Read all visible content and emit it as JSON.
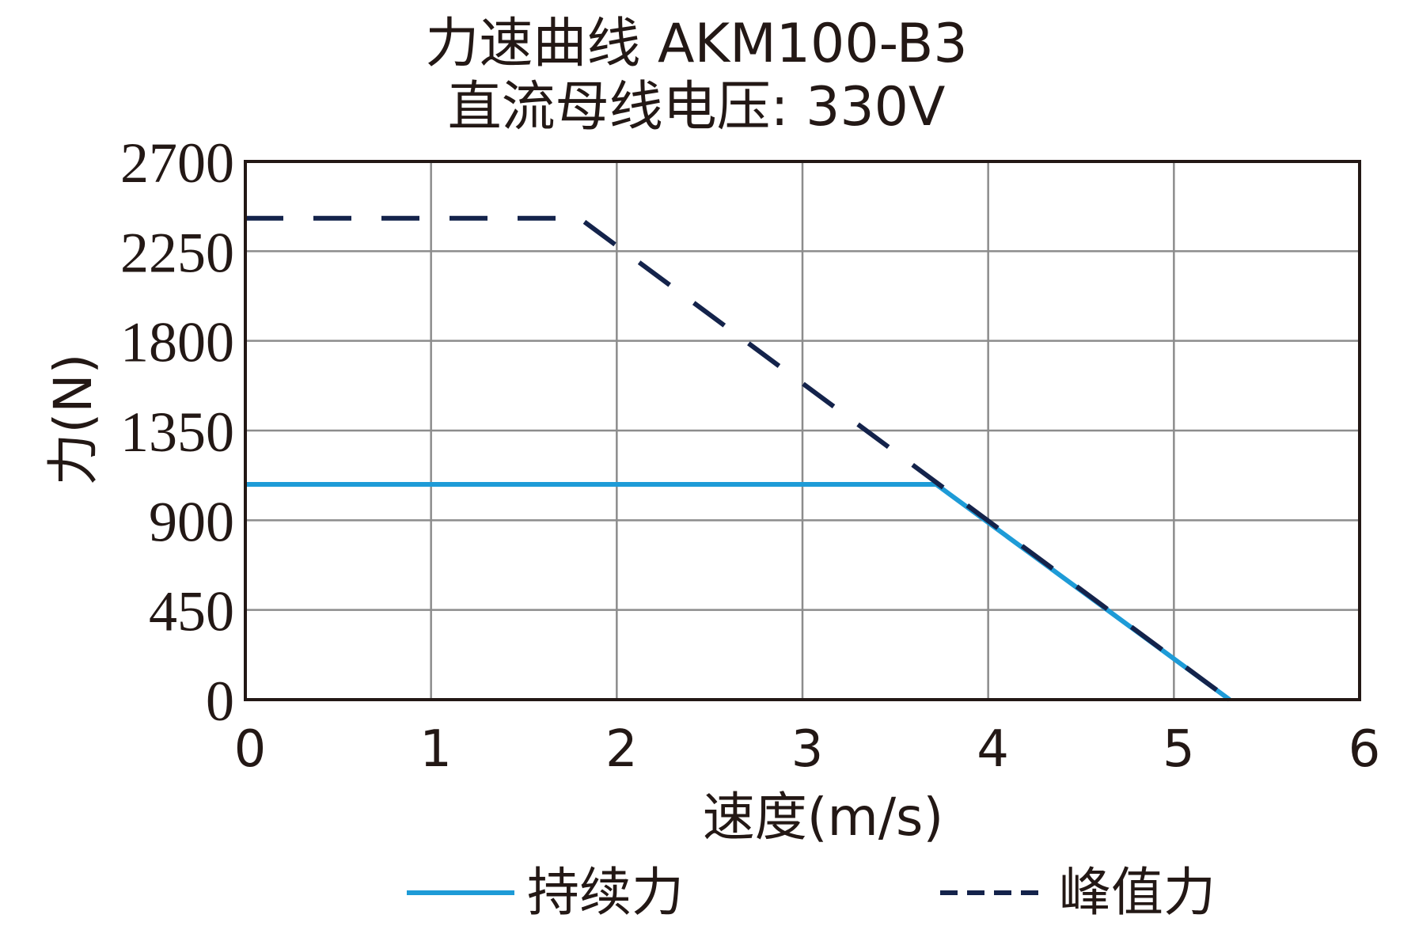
{
  "chart_data": {
    "type": "line",
    "title": "力速曲线 AKM100-B3",
    "subtitle": "直流母线电压: 330V",
    "xlabel": "速度(m/s)",
    "ylabel": "力(N)",
    "xlim": [
      0,
      6
    ],
    "ylim": [
      0,
      2700
    ],
    "x_ticks": [
      "0",
      "1",
      "2",
      "3",
      "4",
      "5",
      "6"
    ],
    "y_ticks": [
      "0",
      "450",
      "900",
      "1350",
      "1800",
      "2250",
      "2700"
    ],
    "grid": true,
    "legend_position": "bottom",
    "series": [
      {
        "name": "持续力",
        "color": "#1e9bd7",
        "style": "solid",
        "points": [
          [
            0,
            1080
          ],
          [
            3.72,
            1080
          ],
          [
            5.3,
            0
          ]
        ]
      },
      {
        "name": "峰值力",
        "color": "#14234b",
        "style": "dashed",
        "points": [
          [
            0,
            2415
          ],
          [
            1.8,
            2415
          ],
          [
            5.3,
            0
          ]
        ]
      }
    ]
  }
}
